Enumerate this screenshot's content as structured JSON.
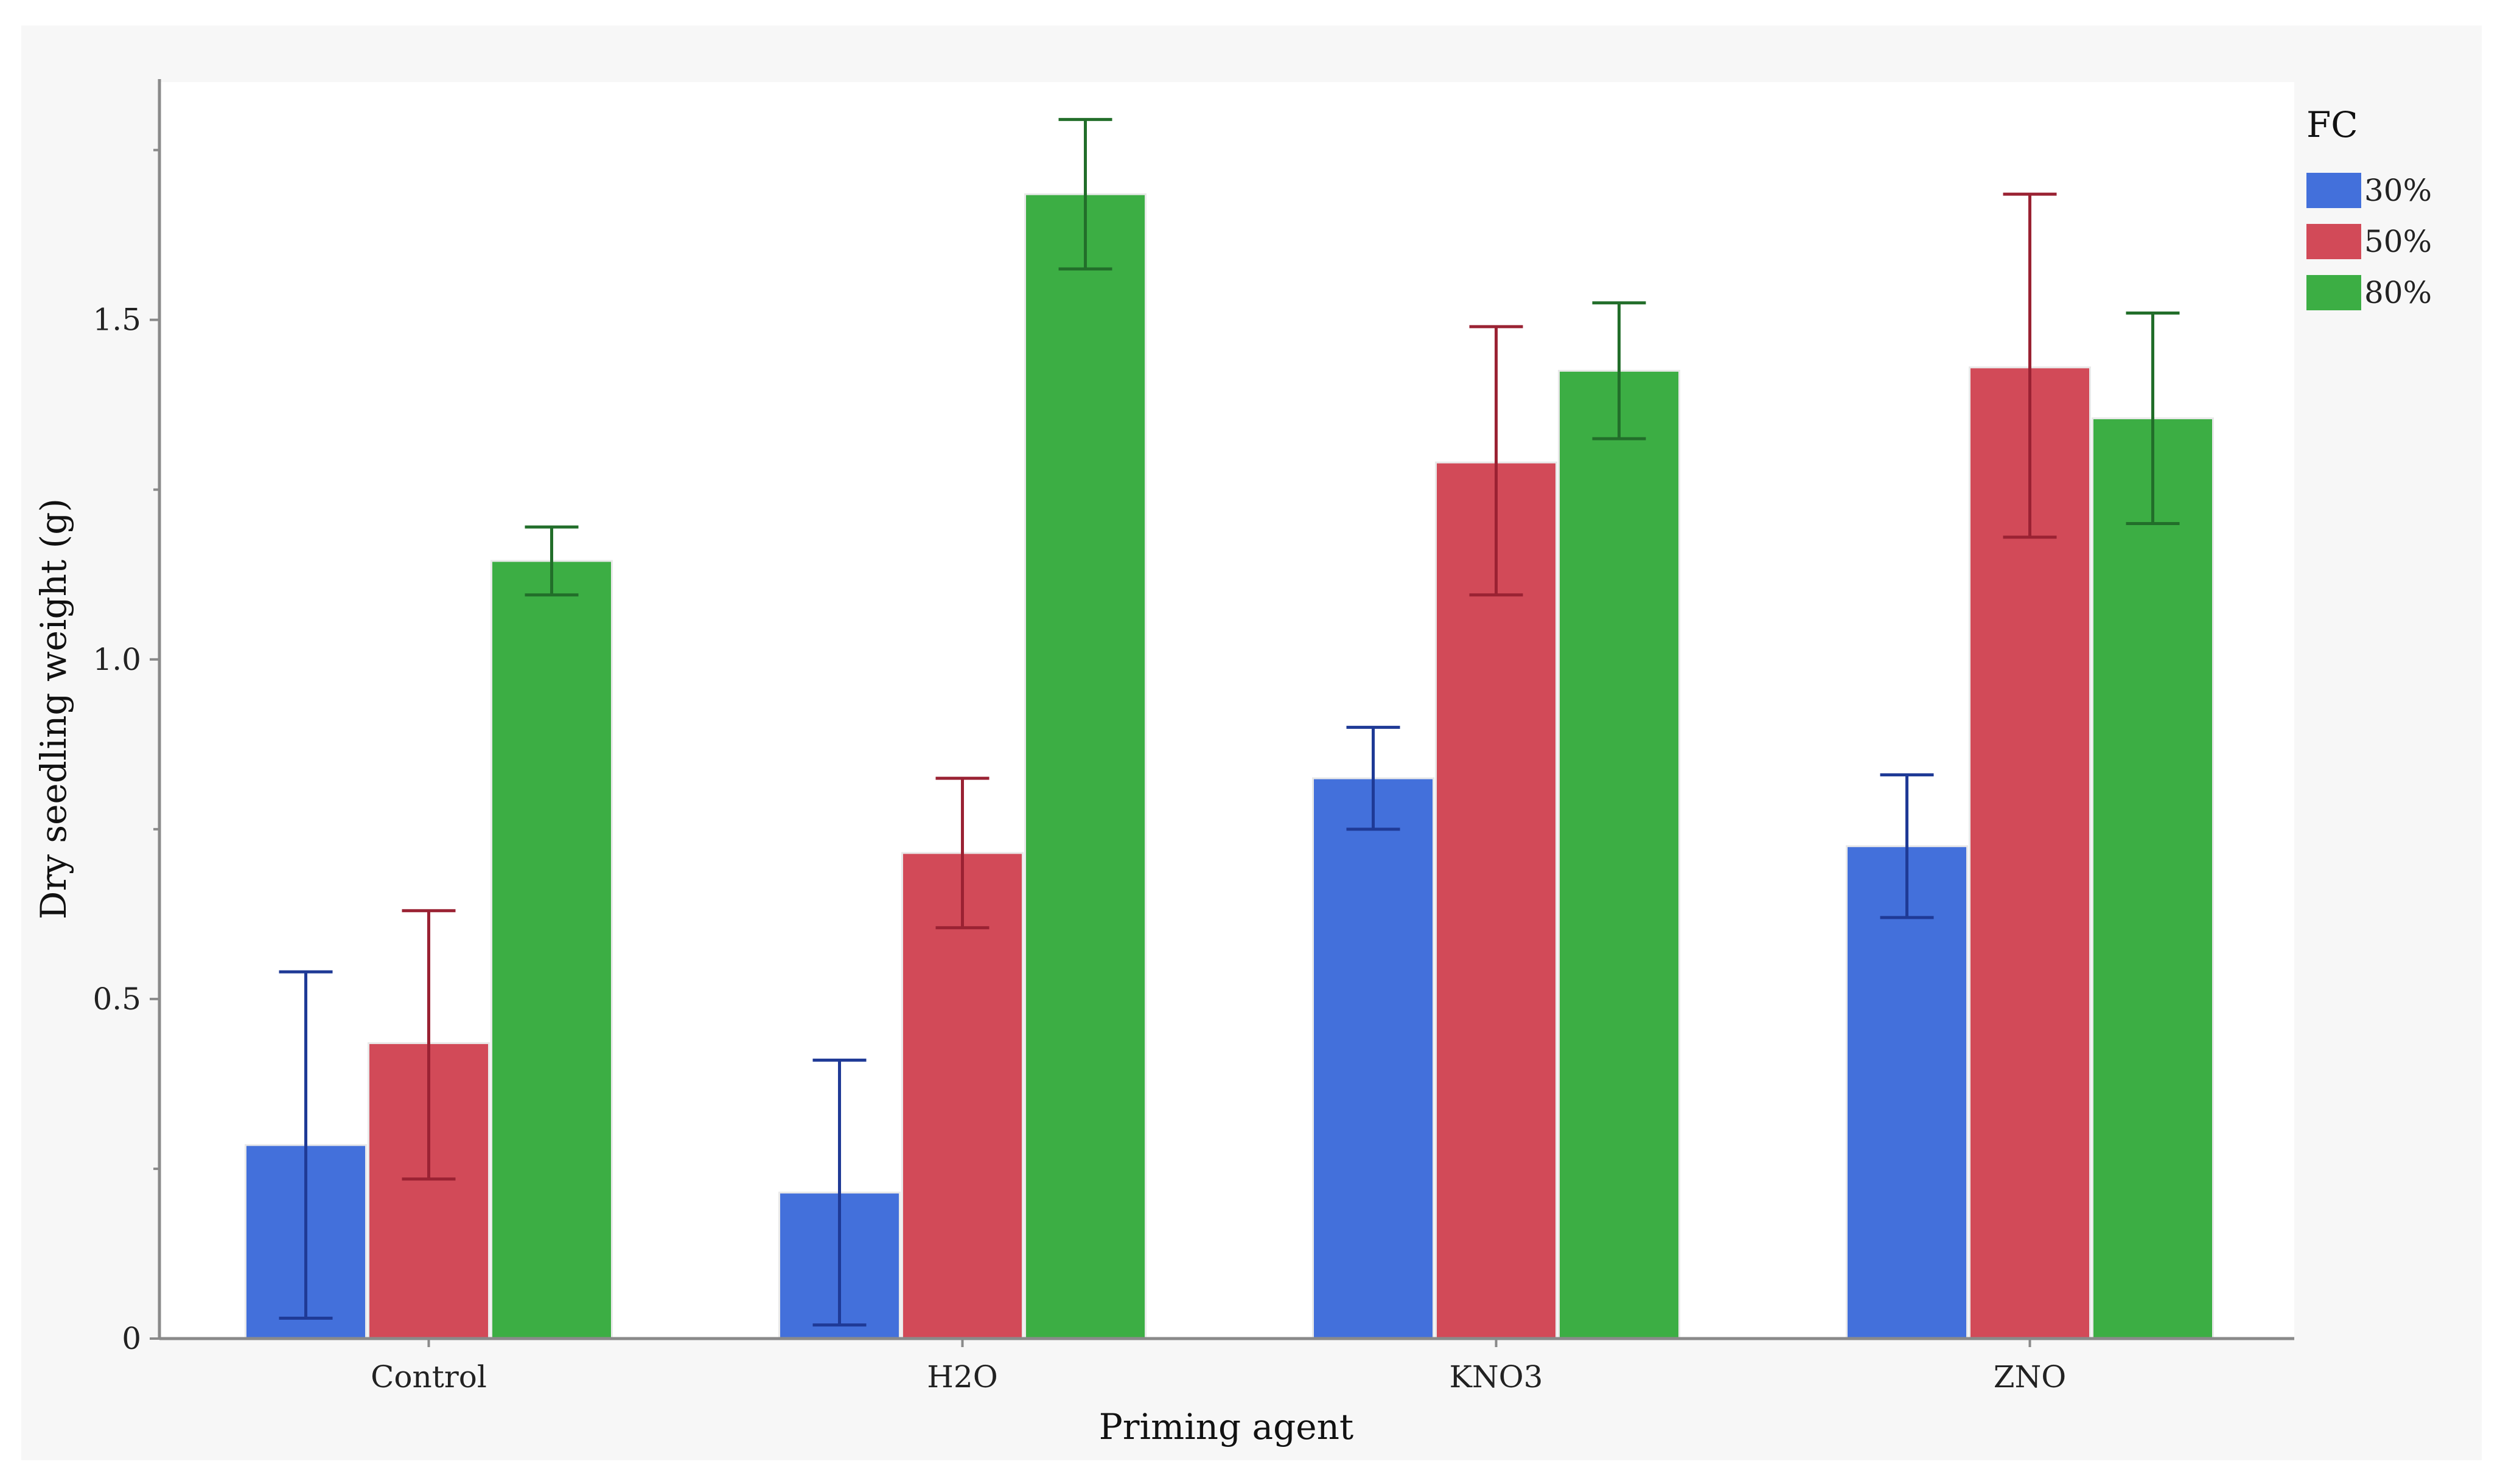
{
  "chart_data": {
    "type": "bar",
    "title": "",
    "xlabel": "Priming agent",
    "ylabel": "Dry seedling weight (g)",
    "categories": [
      "Control",
      "H2O",
      "KNO3",
      "ZNO"
    ],
    "ylim": [
      0,
      1.85
    ],
    "yticks": [
      0,
      0.5,
      1.0,
      1.5
    ],
    "ytick_labels": [
      "0",
      "0.5",
      "1.0",
      "1.5"
    ],
    "grid": false,
    "legend": {
      "title": "FC",
      "position": "top-right"
    },
    "series": [
      {
        "name": "30%",
        "color": "#4370db",
        "error_color": "#1f3a96",
        "values": [
          0.285,
          0.215,
          0.825,
          0.725
        ],
        "err_low": [
          0.03,
          0.02,
          0.75,
          0.62
        ],
        "err_high": [
          0.54,
          0.41,
          0.9,
          0.83
        ]
      },
      {
        "name": "50%",
        "color": "#d24a58",
        "error_color": "#9a2233",
        "values": [
          0.435,
          0.715,
          1.29,
          1.43
        ],
        "err_low": [
          0.235,
          0.605,
          1.095,
          1.18
        ],
        "err_high": [
          0.63,
          0.825,
          1.49,
          1.685
        ]
      },
      {
        "name": "80%",
        "color": "#3cae44",
        "error_color": "#226e2a",
        "values": [
          1.145,
          1.685,
          1.425,
          1.355
        ],
        "err_low": [
          1.095,
          1.575,
          1.325,
          1.2
        ],
        "err_high": [
          1.195,
          1.795,
          1.525,
          1.51
        ]
      }
    ]
  }
}
